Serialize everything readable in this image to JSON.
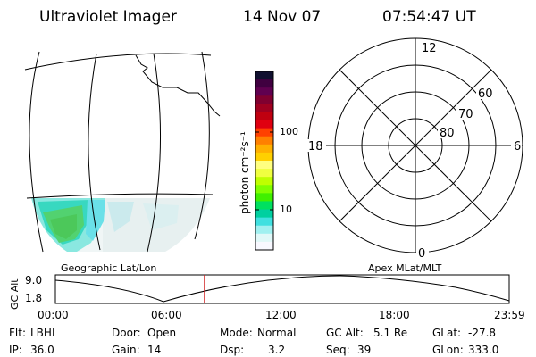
{
  "header": {
    "title": "Ultraviolet Imager",
    "date": "14 Nov 07",
    "time": "07:54:47 UT"
  },
  "map_panel": {
    "label": "Geographic Lat/Lon"
  },
  "colorbar": {
    "unit_label": "photon cm⁻²s⁻¹",
    "tick_labels": [
      "100",
      "10"
    ],
    "colors": [
      "#101030",
      "#400040",
      "#600050",
      "#800030",
      "#a00020",
      "#c00010",
      "#e00010",
      "#ff4000",
      "#ff8000",
      "#ffb000",
      "#ffd000",
      "#ffff80",
      "#f0ff40",
      "#c0ff00",
      "#80ff00",
      "#40f000",
      "#00e060",
      "#00d0a0",
      "#40e0e0",
      "#a0f0f0",
      "#e0f8f8",
      "#f8f8ff"
    ]
  },
  "polar_panel": {
    "label": "Apex MLat/MLT",
    "mlt_labels": {
      "top": "12",
      "left": "18",
      "right": "6",
      "bottom": "0"
    },
    "lat_labels": [
      "60",
      "70",
      "80"
    ]
  },
  "altitude_plot": {
    "ylabel": "GC Alt",
    "y_ticks": [
      "9.0",
      "1.8"
    ],
    "x_ticks": [
      "00:00",
      "06:00",
      "12:00",
      "18:00",
      "23:59"
    ],
    "marker_color": "#d02020"
  },
  "info": {
    "row1": [
      {
        "key": "Flt:",
        "value": "LBHL"
      },
      {
        "key": "Door:",
        "value": "Open"
      },
      {
        "key": "Mode:",
        "value": "Normal"
      },
      {
        "key": "GC Alt:",
        "value": "5.1 Re"
      },
      {
        "key": "GLat:",
        "value": "-27.8"
      }
    ],
    "row2": [
      {
        "key": "IP:",
        "value": "36.0"
      },
      {
        "key": "Gain:",
        "value": "14"
      },
      {
        "key": "Dsp:",
        "value": "3.2"
      },
      {
        "key": "Seq:",
        "value": "39"
      },
      {
        "key": "GLon:",
        "value": "333.0"
      }
    ]
  }
}
